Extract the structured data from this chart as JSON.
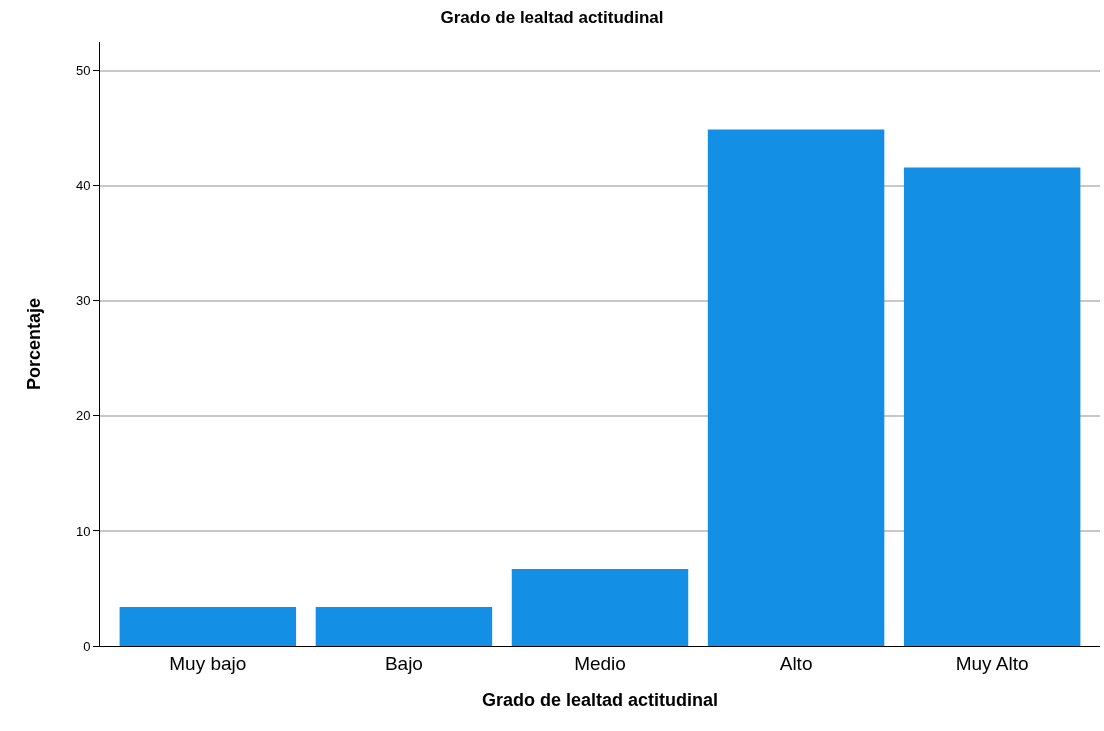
{
  "chart_data": {
    "type": "bar",
    "title": "Grado de lealtad actitudinal",
    "xlabel": "Grado de lealtad actitudinal",
    "ylabel": "Porcentaje",
    "categories": [
      "Muy bajo",
      "Bajo",
      "Medio",
      "Alto",
      "Muy Alto"
    ],
    "values": [
      3.4,
      3.4,
      6.7,
      44.9,
      41.6
    ],
    "color": "#1390e5",
    "ylim": [
      0,
      52.5
    ],
    "yticks": [
      0,
      10,
      20,
      30,
      40,
      50
    ],
    "grid": "y"
  }
}
